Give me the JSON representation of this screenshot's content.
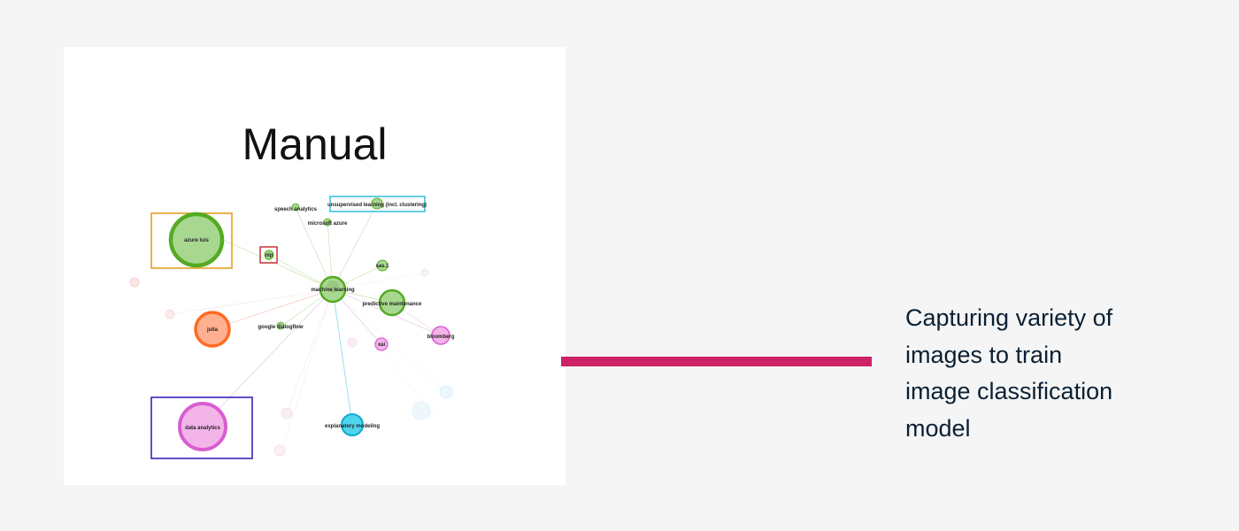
{
  "slide": {
    "card_title": "Manual",
    "caption_lines": [
      "Capturing variety of",
      "images to train",
      "image classification",
      "model"
    ],
    "connector_color": "#cc2266",
    "caption_color": "#0b2033"
  },
  "graph": {
    "nodes": [
      {
        "id": "azure-luis",
        "label": "azure luis",
        "fill": "#a8d890",
        "stroke": "#55aa22"
      },
      {
        "id": "nlp",
        "label": "nlp",
        "fill": "#a8d890",
        "stroke": "#55aa22"
      },
      {
        "id": "speech-analytics",
        "label": "speech analytics",
        "fill": "#a8d890",
        "stroke": "#55aa22"
      },
      {
        "id": "microsoft-azure",
        "label": "microsoft azure",
        "fill": "#a8d890",
        "stroke": "#55aa22"
      },
      {
        "id": "unsupervised-learning",
        "label": "unsupervised learning (incl. clustering)",
        "fill": "#a8d890",
        "stroke": "#55aa22"
      },
      {
        "id": "sas",
        "label": "sas.1",
        "fill": "#a8d890",
        "stroke": "#55aa22"
      },
      {
        "id": "machine-learning",
        "label": "machine learning",
        "fill": "#a8d890",
        "stroke": "#55aa22"
      },
      {
        "id": "predictive-maintenance",
        "label": "predictive maintenance",
        "fill": "#a8d890",
        "stroke": "#55aa22"
      },
      {
        "id": "julia",
        "label": "julia",
        "fill": "#ffb090",
        "stroke": "#ff6a22"
      },
      {
        "id": "google-dialogflow",
        "label": "google dialogflow",
        "fill": "#a8d890",
        "stroke": "#55aa22"
      },
      {
        "id": "xai",
        "label": "xai",
        "fill": "#f3b4ea",
        "stroke": "#d85fd0"
      },
      {
        "id": "bloomberg",
        "label": "bloomberg",
        "fill": "#f3b4ea",
        "stroke": "#d85fd0"
      },
      {
        "id": "data-analytics",
        "label": "data analytics",
        "fill": "#f3b4ea",
        "stroke": "#d85fd0"
      },
      {
        "id": "explanatory-modeling",
        "label": "explanatory modeling",
        "fill": "#4fd6ee",
        "stroke": "#11aacc"
      }
    ],
    "highlight_colors": {
      "azure-luis": "#e0a020",
      "nlp": "#c0282e",
      "unsupervised-learning": "#22bbd6",
      "data-analytics": "#3b22b8"
    }
  }
}
